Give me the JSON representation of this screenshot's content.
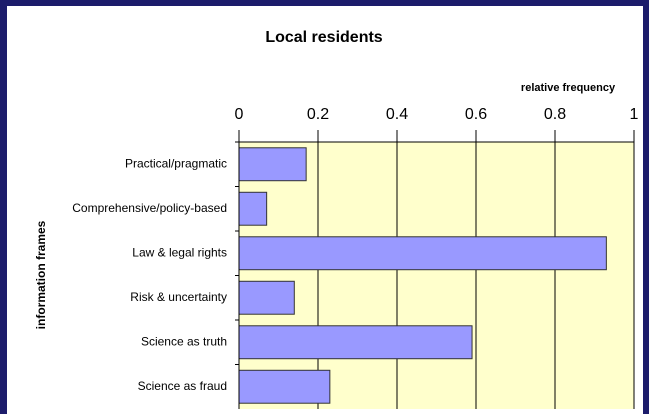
{
  "chart_data": {
    "type": "bar",
    "orientation": "horizontal",
    "title": "Local residents",
    "x_label": "relative frequency",
    "y_label": "information frames",
    "categories": [
      "Practical/pragmatic",
      "Comprehensive/policy-based",
      "Law & legal rights",
      "Risk & uncertainty",
      "Science as truth",
      "Science as fraud"
    ],
    "values": [
      0.17,
      0.07,
      0.93,
      0.14,
      0.59,
      0.23
    ],
    "color": "#9999ff",
    "xlim": [
      0,
      1
    ],
    "xticks": [
      0,
      0.2,
      0.4,
      0.6,
      0.8,
      1
    ],
    "grid": true,
    "plot_background": "#ffffcc"
  }
}
